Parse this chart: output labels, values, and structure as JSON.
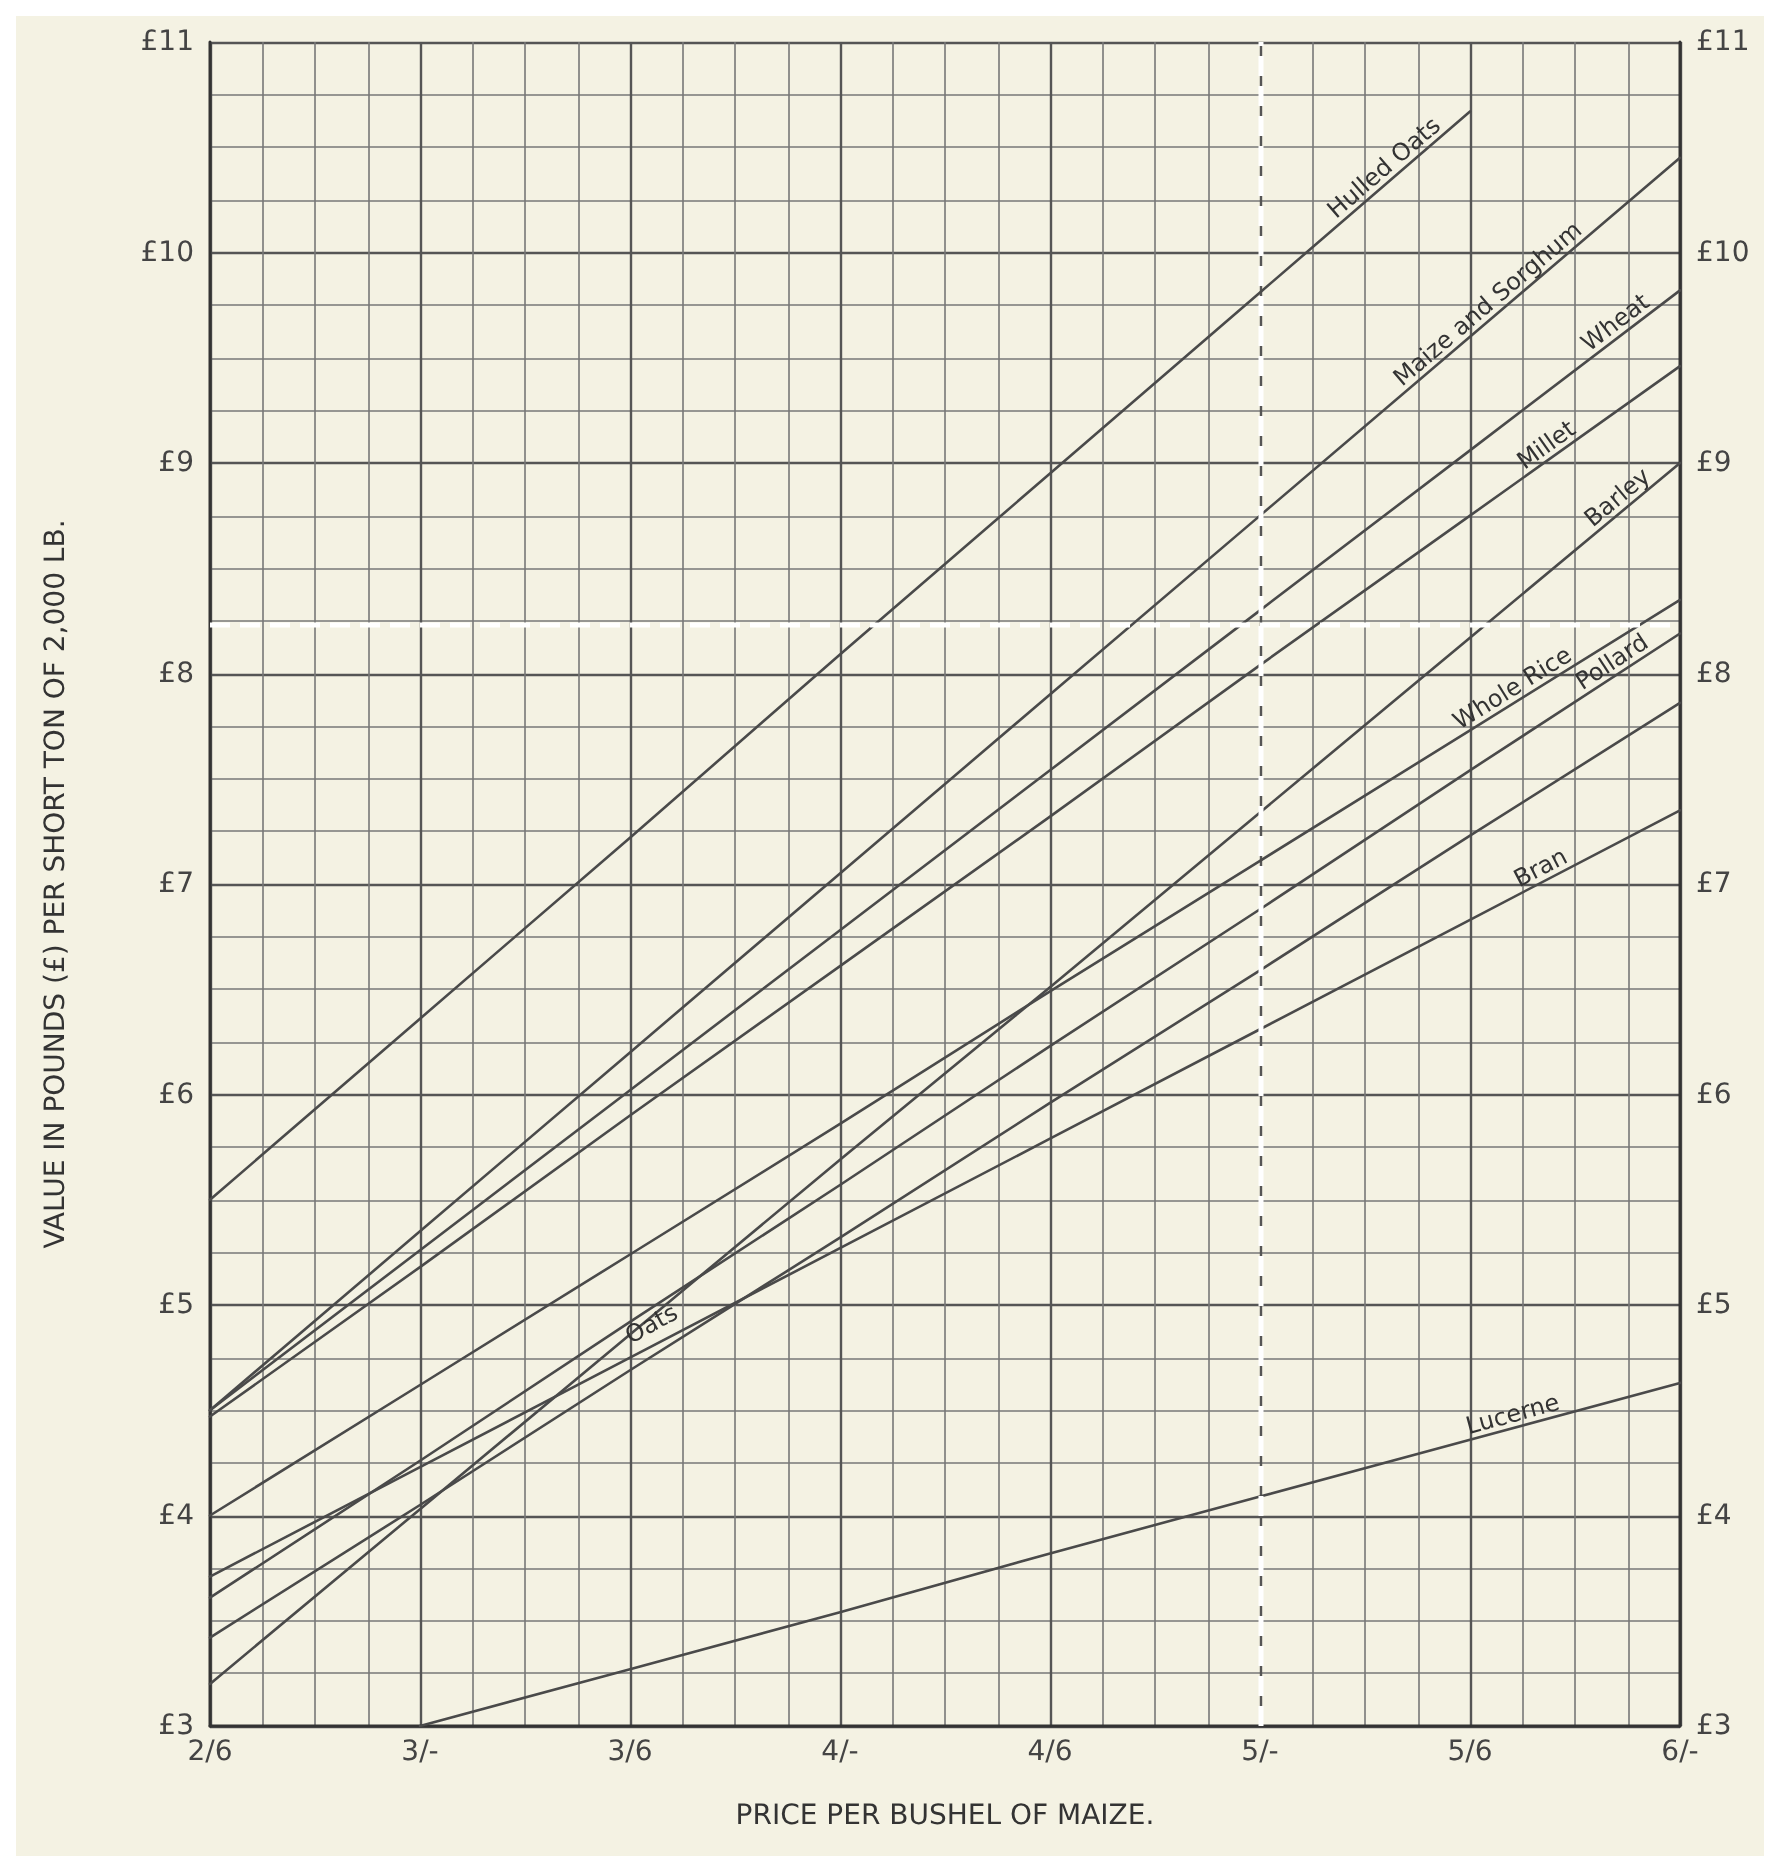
{
  "chart_data": {
    "type": "line",
    "xlabel": "PRICE PER BUSHEL OF MAIZE.",
    "ylabel": "VALUE IN POUNDS (£) PER SHORT TON OF 2,000 LB.",
    "categories": [
      "2/6",
      "3/-",
      "3/6",
      "4/-",
      "4/6",
      "5/-",
      "5/6",
      "6/-"
    ],
    "ylim": [
      3,
      11
    ],
    "yticks": [
      {
        "value": 3,
        "label": "£3"
      },
      {
        "value": 4,
        "label": "£4"
      },
      {
        "value": 5,
        "label": "£5"
      },
      {
        "value": 6,
        "label": "£6"
      },
      {
        "value": 7,
        "label": "£7"
      },
      {
        "value": 8,
        "label": "£8"
      },
      {
        "value": 9,
        "label": "£9"
      },
      {
        "value": 10,
        "label": "£10"
      },
      {
        "value": 11,
        "label": "£11"
      }
    ],
    "y2lim": [
      3,
      11
    ],
    "y2ticks": [
      {
        "value": 3,
        "label": "£3"
      },
      {
        "value": 4,
        "label": "£4"
      },
      {
        "value": 5,
        "label": "£5"
      },
      {
        "value": 6,
        "label": "£6"
      },
      {
        "value": 7,
        "label": "£7"
      },
      {
        "value": 8,
        "label": "£8"
      },
      {
        "value": 9,
        "label": "£9"
      },
      {
        "value": 10,
        "label": "£10"
      },
      {
        "value": 11,
        "label": "£11"
      }
    ],
    "grid": true,
    "legend": false,
    "marker": "none",
    "line_style": "solid",
    "series": [
      {
        "name": "Hulled Oats",
        "color": "#4a4a4a",
        "values": [
          5.5,
          6.36,
          7.22,
          8.09,
          8.95,
          9.81,
          10.67,
          null
        ]
      },
      {
        "name": "Maize and Sorghum",
        "color": "#4a4a4a",
        "values": [
          4.5,
          5.35,
          6.2,
          7.05,
          7.9,
          8.75,
          9.6,
          10.45
        ]
      },
      {
        "name": "Wheat",
        "color": "#4a4a4a",
        "values": [
          4.5,
          5.26,
          6.02,
          6.78,
          7.54,
          8.3,
          9.06,
          9.82
        ]
      },
      {
        "name": "Millet",
        "color": "#4a4a4a",
        "values": [
          4.47,
          5.18,
          5.9,
          6.61,
          7.32,
          8.04,
          8.75,
          9.46
        ]
      },
      {
        "name": "Barley",
        "color": "#4a4a4a",
        "values": [
          3.2,
          4.03,
          4.86,
          5.69,
          6.51,
          7.34,
          8.17,
          9.0
        ]
      },
      {
        "name": "Whole Rice",
        "color": "#4a4a4a",
        "values": [
          4.0,
          4.62,
          5.24,
          5.86,
          6.49,
          7.11,
          7.73,
          8.35
        ]
      },
      {
        "name": "Pollard",
        "color": "#4a4a4a",
        "values": [
          3.61,
          4.26,
          4.92,
          5.57,
          6.23,
          6.88,
          7.54,
          8.19
        ]
      },
      {
        "name": "Bran",
        "color": "#4a4a4a",
        "values": [
          3.71,
          4.23,
          4.75,
          5.27,
          5.79,
          6.31,
          6.83,
          7.35
        ]
      },
      {
        "color": "#4a4a4a",
        "values": [
          3.42,
          4.05,
          4.69,
          5.32,
          5.96,
          6.59,
          7.23,
          7.86
        ]
      },
      {
        "name": "Lucerne",
        "color": "#4a4a4a",
        "values": [
          null,
          3,
          3.27,
          3.54,
          3.82,
          4.09,
          4.36,
          4.63
        ]
      }
    ],
    "annotations": [
      {
        "text": "Oats",
        "x": "3/6",
        "y": 4.78
      }
    ],
    "ref_lines": [
      {
        "axis": "y",
        "value": 8.23,
        "color": "#ffffff",
        "line_style": "dashed"
      },
      {
        "axis": "x",
        "value": "5/-",
        "color": "#ffffff",
        "line_style": "dashed"
      }
    ]
  }
}
